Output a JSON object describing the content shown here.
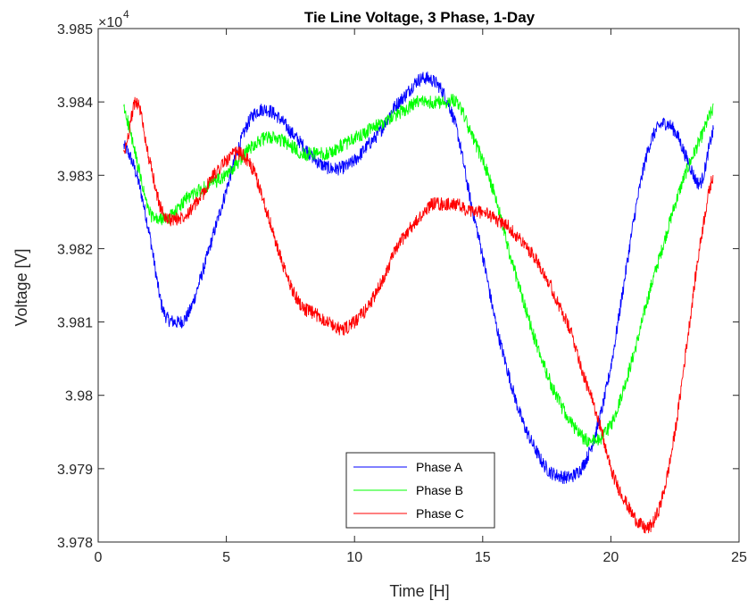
{
  "chart_data": {
    "type": "line",
    "title": "Tie Line Voltage, 3 Phase, 1-Day",
    "xlabel": "Time [H]",
    "ylabel": "Voltage [V]",
    "exponent_label": "×10",
    "exponent_power": "4",
    "xlim": [
      0,
      25
    ],
    "ylim": [
      3.978,
      3.985
    ],
    "x_ticks": [
      0,
      5,
      10,
      15,
      20,
      25
    ],
    "x_tick_labels": [
      "0",
      "5",
      "10",
      "15",
      "20",
      "25"
    ],
    "y_ticks": [
      3.978,
      3.979,
      3.98,
      3.981,
      3.982,
      3.983,
      3.984,
      3.985
    ],
    "y_tick_labels": [
      "3.978",
      "3.979",
      "3.98",
      "3.981",
      "3.982",
      "3.983",
      "3.984",
      "3.985"
    ],
    "grid": false,
    "legend_position": "bottom-center",
    "series": [
      {
        "name": "Phase A",
        "color": "#0000ff",
        "x": [
          1,
          1.5,
          2,
          2.5,
          3,
          3.5,
          4,
          4.5,
          5,
          5.5,
          6,
          6.5,
          7,
          7.5,
          8,
          8.5,
          9,
          9.5,
          10,
          10.5,
          11,
          11.5,
          12,
          12.5,
          13,
          13.5,
          14,
          14.5,
          15,
          15.5,
          16,
          16.5,
          17,
          17.5,
          18,
          18.5,
          19,
          19.5,
          20,
          20.5,
          21,
          21.5,
          22,
          22.5,
          23,
          23.5,
          24
        ],
        "y": [
          3.9834,
          3.983,
          3.9822,
          3.9812,
          3.981,
          3.9811,
          3.9816,
          3.9822,
          3.9828,
          3.9834,
          3.9838,
          3.9839,
          3.9838,
          3.9836,
          3.9834,
          3.9832,
          3.9831,
          3.9831,
          3.9832,
          3.9834,
          3.9836,
          3.9839,
          3.9841,
          3.9843,
          3.9843,
          3.9841,
          3.9836,
          3.9827,
          3.9819,
          3.981,
          3.9803,
          3.9797,
          3.9793,
          3.979,
          3.9789,
          3.9789,
          3.9791,
          3.9796,
          3.9804,
          3.9815,
          3.9826,
          3.9834,
          3.9837,
          3.9836,
          3.9832,
          3.9829,
          3.9836
        ]
      },
      {
        "name": "Phase B",
        "color": "#00ff00",
        "x": [
          1,
          1.5,
          2,
          2.5,
          3,
          3.5,
          4,
          4.5,
          5,
          5.5,
          6,
          6.5,
          7,
          7.5,
          8,
          8.5,
          9,
          9.5,
          10,
          10.5,
          11,
          11.5,
          12,
          12.5,
          13,
          13.5,
          14,
          14.5,
          15,
          15.5,
          16,
          16.5,
          17,
          17.5,
          18,
          18.5,
          19,
          19.5,
          20,
          20.5,
          21,
          21.5,
          22,
          22.5,
          23,
          23.5,
          24
        ],
        "y": [
          3.9839,
          3.9832,
          3.9825,
          3.9824,
          3.9825,
          3.9827,
          3.9828,
          3.9829,
          3.983,
          3.9832,
          3.9834,
          3.9835,
          3.9835,
          3.9834,
          3.9833,
          3.9833,
          3.9833,
          3.9834,
          3.9835,
          3.9836,
          3.9837,
          3.9838,
          3.9839,
          3.984,
          3.984,
          3.984,
          3.984,
          3.9836,
          3.9832,
          3.9827,
          3.982,
          3.9814,
          3.9808,
          3.9803,
          3.9799,
          3.9796,
          3.9794,
          3.9794,
          3.9796,
          3.9801,
          3.9807,
          3.9814,
          3.982,
          3.9826,
          3.9831,
          3.9835,
          3.9839
        ]
      },
      {
        "name": "Phase C",
        "color": "#ff0000",
        "x": [
          1,
          1.5,
          2,
          2.5,
          3,
          3.5,
          4,
          4.5,
          5,
          5.5,
          6,
          6.5,
          7,
          7.5,
          8,
          8.5,
          9,
          9.5,
          10,
          10.5,
          11,
          11.5,
          12,
          12.5,
          13,
          13.5,
          14,
          14.5,
          15,
          15.5,
          16,
          16.5,
          17,
          17.5,
          18,
          18.5,
          19,
          19.5,
          20,
          20.5,
          21,
          21.5,
          22,
          22.5,
          23,
          23.5,
          24
        ],
        "y": [
          3.9833,
          3.984,
          3.9832,
          3.9825,
          3.9824,
          3.9825,
          3.9827,
          3.983,
          3.9832,
          3.9833,
          3.9831,
          3.9826,
          3.982,
          3.9815,
          3.9812,
          3.9811,
          3.981,
          3.9809,
          3.981,
          3.9812,
          3.9815,
          3.9819,
          3.9822,
          3.9824,
          3.9826,
          3.9826,
          3.9826,
          3.9825,
          3.9825,
          3.9824,
          3.9823,
          3.9821,
          3.9819,
          3.9816,
          3.9812,
          3.9808,
          3.9802,
          3.9797,
          3.979,
          3.9786,
          3.9783,
          3.9782,
          3.9786,
          3.9795,
          3.9808,
          3.9821,
          3.983
        ]
      }
    ]
  }
}
